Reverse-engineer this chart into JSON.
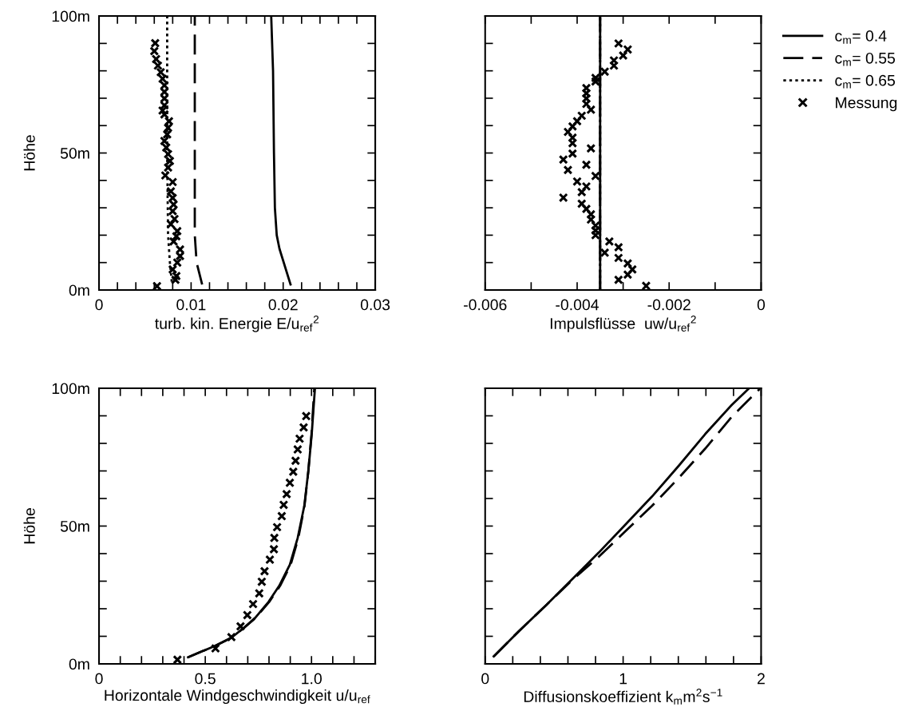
{
  "chart_data": [
    {
      "type": "line",
      "xlabel": "turb. kin. Energie E/u$_{ref}$$^{2}$",
      "ylabel": "Höhe",
      "xlim": [
        0,
        0.03
      ],
      "ylim": [
        0,
        100
      ],
      "xticks": [
        {
          "value": 0,
          "label": "0"
        },
        {
          "value": 0.002,
          "label": null
        },
        {
          "value": 0.004,
          "label": null
        },
        {
          "value": 0.006,
          "label": null
        },
        {
          "value": 0.008,
          "label": null
        },
        {
          "value": 0.01,
          "label": "0.01"
        },
        {
          "value": 0.012,
          "label": null
        },
        {
          "value": 0.014,
          "label": null
        },
        {
          "value": 0.016,
          "label": null
        },
        {
          "value": 0.018,
          "label": null
        },
        {
          "value": 0.02,
          "label": "0.02"
        },
        {
          "value": 0.022,
          "label": null
        },
        {
          "value": 0.024,
          "label": null
        },
        {
          "value": 0.026,
          "label": null
        },
        {
          "value": 0.028,
          "label": null
        },
        {
          "value": 0.03,
          "label": "0.03"
        }
      ],
      "yticks": [
        {
          "value": 0,
          "label": "0m"
        },
        {
          "value": 10,
          "label": null
        },
        {
          "value": 20,
          "label": null
        },
        {
          "value": 30,
          "label": null
        },
        {
          "value": 40,
          "label": null
        },
        {
          "value": 50,
          "label": "50m"
        },
        {
          "value": 60,
          "label": null
        },
        {
          "value": 70,
          "label": null
        },
        {
          "value": 80,
          "label": null
        },
        {
          "value": 90,
          "label": null
        },
        {
          "value": 100,
          "label": "100m"
        }
      ],
      "grid": false,
      "series": [
        {
          "color": "#000000",
          "line_style": "solid",
          "x": [
            0.0208,
            0.0196,
            0.0193,
            0.0191,
            0.019,
            0.0189,
            0.0187
          ],
          "values": [
            2,
            15,
            20,
            30,
            50,
            80,
            100
          ]
        },
        {
          "color": "#000000",
          "line_style": "dashed",
          "x": [
            0.0112,
            0.0106,
            0.0104,
            0.0104
          ],
          "values": [
            2,
            10,
            20,
            100
          ]
        },
        {
          "color": "#000000",
          "line_style": "dotted",
          "x": [
            0.0079,
            0.0077,
            0.0075,
            0.0074,
            0.0074
          ],
          "values": [
            3,
            10,
            20,
            50,
            100
          ]
        },
        {
          "type": "scatter",
          "color": "#000000",
          "marker": "cross",
          "x": [
            0.0061,
            0.006,
            0.0062,
            0.0064,
            0.0067,
            0.0069,
            0.0071,
            0.0071,
            0.0071,
            0.0071,
            0.0069,
            0.0071,
            0.0076,
            0.0075,
            0.0074,
            0.0071,
            0.0073,
            0.0075,
            0.0077,
            0.0075,
            0.0072,
            0.008,
            0.0078,
            0.008,
            0.0081,
            0.008,
            0.0082,
            0.0078,
            0.0085,
            0.0084,
            0.0081,
            0.0088,
            0.0088,
            0.0085,
            0.008,
            0.0084,
            0.0083,
            0.0063
          ],
          "values": [
            90.1,
            87.2,
            84.3,
            81.9,
            79.5,
            77.1,
            74.7,
            72.3,
            69.9,
            67.4,
            65.5,
            64.1,
            61.6,
            59.2,
            56.8,
            54.4,
            52,
            49.6,
            47.1,
            44.7,
            41.8,
            39.4,
            36,
            33.6,
            31.2,
            28.8,
            25.9,
            24,
            21.5,
            19.6,
            17.7,
            14.8,
            12.4,
            10,
            7.5,
            5.1,
            3.7,
            1.4
          ]
        }
      ]
    },
    {
      "type": "line",
      "xlabel": "Impulsflüsse  uw/u$_{ref}$$^{2}$",
      "xlim": [
        -0.006,
        0
      ],
      "ylim": [
        0,
        100
      ],
      "tick_labels": "x",
      "legend": "right",
      "xticks": [
        {
          "value": -0.006,
          "label": "-0.006"
        },
        {
          "value": -0.005,
          "label": null
        },
        {
          "value": -0.004,
          "label": "-0.004"
        },
        {
          "value": -0.003,
          "label": null
        },
        {
          "value": -0.002,
          "label": "-0.002"
        },
        {
          "value": -0.001,
          "label": null
        },
        {
          "value": 0,
          "label": "0"
        }
      ],
      "yticks": [
        {
          "value": 0,
          "label": null
        },
        {
          "value": 10,
          "label": null
        },
        {
          "value": 20,
          "label": null
        },
        {
          "value": 30,
          "label": null
        },
        {
          "value": 40,
          "label": null
        },
        {
          "value": 50,
          "label": null
        },
        {
          "value": 60,
          "label": null
        },
        {
          "value": 70,
          "label": null
        },
        {
          "value": 80,
          "label": null
        },
        {
          "value": 90,
          "label": null
        },
        {
          "value": 100,
          "label": null
        }
      ],
      "grid": false,
      "series": [
        {
          "name": "c$_{m}$= 0.4",
          "color": "#000000",
          "line_style": "solid",
          "x": [
            -0.0035,
            -0.0035
          ],
          "values": [
            0,
            100
          ]
        },
        {
          "name": "c$_{m}$= 0.55",
          "color": "#000000",
          "line_style": "dashed",
          "x": [
            -0.0035,
            -0.0035
          ],
          "values": [
            0,
            100
          ]
        },
        {
          "name": "c$_{m}$= 0.65",
          "color": "#000000",
          "line_style": "dotted",
          "x": [
            -0.0035,
            -0.0035
          ],
          "values": [
            0,
            100
          ]
        },
        {
          "type": "scatter",
          "name": "Messung",
          "color": "#000000",
          "marker": "cross",
          "x": [
            -0.0031,
            -0.0029,
            -0.003,
            -0.0032,
            -0.0032,
            -0.0034,
            -0.0036,
            -0.0036,
            -0.0038,
            -0.0038,
            -0.0038,
            -0.0038,
            -0.0037,
            -0.0039,
            -0.004,
            -0.0041,
            -0.0042,
            -0.0041,
            -0.0041,
            -0.0037,
            -0.0041,
            -0.0043,
            -0.0038,
            -0.0042,
            -0.0036,
            -0.004,
            -0.0038,
            -0.0039,
            -0.0043,
            -0.0039,
            -0.0038,
            -0.0037,
            -0.0037,
            -0.0036,
            -0.0036,
            -0.0036,
            -0.0033,
            -0.0031,
            -0.0034,
            -0.0031,
            -0.0029,
            -0.0028,
            -0.0029,
            -0.0031,
            -0.0025
          ],
          "values": [
            90,
            87.8,
            85.6,
            83.8,
            81.9,
            79.7,
            77.4,
            76.1,
            73.7,
            71.8,
            69.9,
            67.9,
            65.8,
            63.6,
            61.6,
            59.7,
            57.7,
            55.6,
            53.6,
            51.7,
            49.8,
            47.6,
            45.7,
            43.8,
            41.6,
            39.6,
            37.8,
            35.7,
            33.7,
            31.5,
            29.6,
            27.6,
            25.7,
            23.5,
            21.7,
            20,
            17.7,
            15.6,
            13.6,
            11.7,
            9.7,
            7.5,
            5.6,
            3.7,
            1.5
          ]
        }
      ]
    },
    {
      "type": "line",
      "xlabel": "Horizontale Windgeschwindigkeit u/u$_{ref}$",
      "ylabel": "Höhe",
      "xlim": [
        0,
        1.3
      ],
      "ylim": [
        0,
        100
      ],
      "xticks": [
        {
          "value": 0,
          "label": "0"
        },
        {
          "value": 0.1,
          "label": null
        },
        {
          "value": 0.2,
          "label": null
        },
        {
          "value": 0.3,
          "label": null
        },
        {
          "value": 0.4,
          "label": null
        },
        {
          "value": 0.5,
          "label": "0.5"
        },
        {
          "value": 0.6,
          "label": null
        },
        {
          "value": 0.7,
          "label": null
        },
        {
          "value": 0.8,
          "label": null
        },
        {
          "value": 0.9,
          "label": null
        },
        {
          "value": 1.0,
          "label": "1.0"
        },
        {
          "value": 1.1,
          "label": null
        },
        {
          "value": 1.2,
          "label": null
        },
        {
          "value": 1.3,
          "label": null
        }
      ],
      "yticks": [
        {
          "value": 0,
          "label": "0m"
        },
        {
          "value": 10,
          "label": null
        },
        {
          "value": 20,
          "label": null
        },
        {
          "value": 30,
          "label": null
        },
        {
          "value": 40,
          "label": null
        },
        {
          "value": 50,
          "label": "50m"
        },
        {
          "value": 60,
          "label": null
        },
        {
          "value": 70,
          "label": null
        },
        {
          "value": 80,
          "label": null
        },
        {
          "value": 90,
          "label": null
        },
        {
          "value": 100,
          "label": "100m"
        }
      ],
      "grid": false,
      "series": [
        {
          "color": "#000000",
          "line_style": "solid",
          "x": [
            0.419,
            0.548,
            0.623,
            0.679,
            0.735,
            0.798,
            0.848,
            0.898,
            0.935,
            0.966,
            0.985,
            1.001,
            1.016
          ],
          "values": [
            2.4,
            6.6,
            9.5,
            12.9,
            16.7,
            22.5,
            28.3,
            36,
            45.7,
            57.3,
            69.9,
            83.4,
            99.8
          ]
        },
        {
          "color": "#000000",
          "line_style": "dashed",
          "x": [
            0.419,
            0.548,
            0.623,
            0.68,
            0.737,
            0.801,
            0.852,
            0.902,
            0.938,
            0.967,
            0.985,
            1.0,
            1.013
          ],
          "values": [
            2.4,
            6.6,
            9.5,
            12.9,
            16.7,
            22.5,
            28.3,
            36,
            45.7,
            57.3,
            69.9,
            83.4,
            99.8
          ]
        },
        {
          "type": "scatter",
          "color": "#000000",
          "marker": "cross",
          "x": [
            0.369,
            0.548,
            0.623,
            0.666,
            0.698,
            0.725,
            0.754,
            0.766,
            0.779,
            0.804,
            0.823,
            0.825,
            0.838,
            0.86,
            0.869,
            0.883,
            0.898,
            0.914,
            0.925,
            0.935,
            0.944,
            0.963,
            0.975
          ],
          "values": [
            1.5,
            5.6,
            9.7,
            13.6,
            17.7,
            21.7,
            25.6,
            29.8,
            33.6,
            37.8,
            41.6,
            45.7,
            49.6,
            53.6,
            57.7,
            61.6,
            65.7,
            69.7,
            73.7,
            77.8,
            81.7,
            85.8,
            89.9
          ]
        }
      ]
    },
    {
      "type": "line",
      "xlabel": "Diffusionskoeffizient k$_{m}$m$^{2}$s$^{−1}$",
      "xlim": [
        0,
        2
      ],
      "ylim": [
        0,
        100
      ],
      "tick_labels": "x",
      "xticks": [
        {
          "value": 0,
          "label": "0"
        },
        {
          "value": 0.2,
          "label": null
        },
        {
          "value": 0.4,
          "label": null
        },
        {
          "value": 0.6,
          "label": null
        },
        {
          "value": 0.8,
          "label": null
        },
        {
          "value": 1,
          "label": "1"
        },
        {
          "value": 1.2,
          "label": null
        },
        {
          "value": 1.4,
          "label": null
        },
        {
          "value": 1.6,
          "label": null
        },
        {
          "value": 1.8,
          "label": null
        },
        {
          "value": 2,
          "label": "2"
        }
      ],
      "yticks": [
        {
          "value": 0,
          "label": null
        },
        {
          "value": 10,
          "label": null
        },
        {
          "value": 20,
          "label": null
        },
        {
          "value": 30,
          "label": null
        },
        {
          "value": 40,
          "label": null
        },
        {
          "value": 50,
          "label": null
        },
        {
          "value": 60,
          "label": null
        },
        {
          "value": 70,
          "label": null
        },
        {
          "value": 80,
          "label": null
        },
        {
          "value": 90,
          "label": null
        },
        {
          "value": 100,
          "label": null
        }
      ],
      "grid": false,
      "series": [
        {
          "color": "#000000",
          "line_style": "solid",
          "x": [
            0.062,
            0.245,
            0.438,
            0.631,
            0.824,
            1.016,
            1.209,
            1.402,
            1.595,
            1.788,
            1.913
          ],
          "values": [
            2.7,
            11.9,
            21.1,
            30.7,
            40.4,
            50.5,
            60.7,
            71.8,
            83.4,
            94,
            100
          ]
        },
        {
          "color": "#000000",
          "line_style": "dashed",
          "x": [
            0.062,
            0.245,
            0.438,
            0.631,
            0.824,
            1.016,
            1.209,
            1.402,
            1.595,
            1.788,
            1.99
          ],
          "values": [
            2.7,
            11.9,
            21.1,
            30.4,
            38.9,
            48.1,
            57.3,
            67.4,
            78.1,
            89.7,
            99.8
          ]
        }
      ]
    }
  ]
}
